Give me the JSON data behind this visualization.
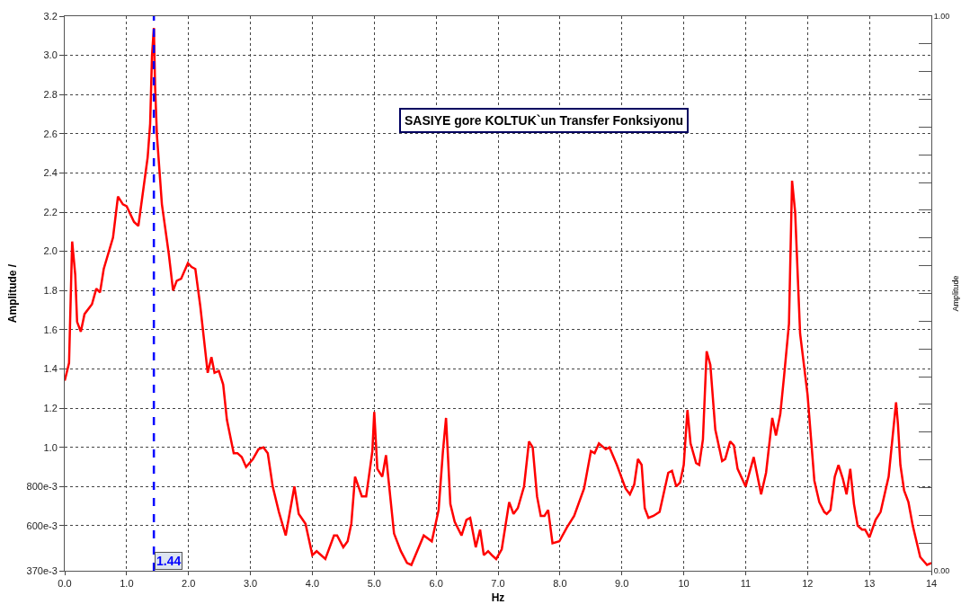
{
  "chart_data": {
    "type": "line",
    "title": "SASIYE gore KOLTUK`un Transfer Fonksiyonu",
    "xlabel": "Hz",
    "ylabel": "Amplitude /",
    "y2label": "Amplitude",
    "x": [
      0,
      0.07,
      0.12,
      0.17,
      0.2,
      0.26,
      0.32,
      0.44,
      0.51,
      0.57,
      0.63,
      0.78,
      0.86,
      0.94,
      1.0,
      1.12,
      1.19,
      1.34,
      1.38,
      1.41,
      1.44,
      1.46,
      1.49,
      1.57,
      1.68,
      1.75,
      1.81,
      1.88,
      1.99,
      2.05,
      2.11,
      2.19,
      2.31,
      2.37,
      2.42,
      2.49,
      2.56,
      2.62,
      2.73,
      2.79,
      2.86,
      2.93,
      3.04,
      3.13,
      3.21,
      3.28,
      3.36,
      3.46,
      3.57,
      3.71,
      3.78,
      3.89,
      4.0,
      4.07,
      4.21,
      4.35,
      4.4,
      4.5,
      4.57,
      4.63,
      4.69,
      4.8,
      4.87,
      4.97,
      5.0,
      5.05,
      5.13,
      5.19,
      5.32,
      5.43,
      5.53,
      5.6,
      5.8,
      5.93,
      6.04,
      6.11,
      6.16,
      6.23,
      6.3,
      6.41,
      6.49,
      6.55,
      6.64,
      6.71,
      6.77,
      6.84,
      6.9,
      6.97,
      7.06,
      7.18,
      7.25,
      7.32,
      7.42,
      7.5,
      7.56,
      7.63,
      7.69,
      7.75,
      7.81,
      7.88,
      7.99,
      8.11,
      8.23,
      8.39,
      8.5,
      8.56,
      8.63,
      8.74,
      8.8,
      8.92,
      9.06,
      9.13,
      9.2,
      9.26,
      9.32,
      9.37,
      9.43,
      9.51,
      9.61,
      9.75,
      9.81,
      9.88,
      9.94,
      10.0,
      10.06,
      10.11,
      10.2,
      10.25,
      10.31,
      10.37,
      10.43,
      10.51,
      10.62,
      10.67,
      10.75,
      10.81,
      10.87,
      11.0,
      11.13,
      11.25,
      11.33,
      11.43,
      11.49,
      11.56,
      11.62,
      11.7,
      11.75,
      11.8,
      11.88,
      12.0,
      12.11,
      12.19,
      12.27,
      12.31,
      12.37,
      12.44,
      12.5,
      12.57,
      12.63,
      12.69,
      12.75,
      12.81,
      12.88,
      12.93,
      13.0,
      13.1,
      13.18,
      13.31,
      13.43,
      13.46,
      13.5,
      13.56,
      13.63,
      13.7,
      13.82,
      13.93,
      14.0
    ],
    "series": [
      {
        "color": "#ff0000",
        "values": [
          1.34,
          1.43,
          2.05,
          1.88,
          1.64,
          1.59,
          1.68,
          1.73,
          1.81,
          1.79,
          1.91,
          2.07,
          2.28,
          2.24,
          2.23,
          2.15,
          2.13,
          2.48,
          2.65,
          3.0,
          3.14,
          2.84,
          2.59,
          2.24,
          1.99,
          1.8,
          1.85,
          1.86,
          1.94,
          1.92,
          1.91,
          1.72,
          1.38,
          1.46,
          1.38,
          1.39,
          1.32,
          1.14,
          0.97,
          0.97,
          0.95,
          0.9,
          0.94,
          0.99,
          1.0,
          0.97,
          0.8,
          0.67,
          0.55,
          0.8,
          0.66,
          0.61,
          0.45,
          0.47,
          0.43,
          0.55,
          0.55,
          0.49,
          0.52,
          0.61,
          0.85,
          0.75,
          0.75,
          0.98,
          1.18,
          0.89,
          0.85,
          0.96,
          0.56,
          0.47,
          0.41,
          0.4,
          0.55,
          0.52,
          0.68,
          0.98,
          1.15,
          0.71,
          0.62,
          0.55,
          0.63,
          0.64,
          0.49,
          0.58,
          0.45,
          0.47,
          0.45,
          0.43,
          0.48,
          0.72,
          0.66,
          0.69,
          0.8,
          1.03,
          1.0,
          0.75,
          0.65,
          0.65,
          0.68,
          0.51,
          0.52,
          0.59,
          0.65,
          0.79,
          0.98,
          0.97,
          1.02,
          0.99,
          1.0,
          0.91,
          0.79,
          0.76,
          0.81,
          0.94,
          0.91,
          0.69,
          0.64,
          0.65,
          0.67,
          0.87,
          0.88,
          0.8,
          0.82,
          0.91,
          1.19,
          1.02,
          0.92,
          0.91,
          1.04,
          1.49,
          1.42,
          1.09,
          0.93,
          0.94,
          1.03,
          1.01,
          0.89,
          0.8,
          0.95,
          0.76,
          0.87,
          1.15,
          1.06,
          1.17,
          1.36,
          1.63,
          2.36,
          2.2,
          1.58,
          1.27,
          0.83,
          0.72,
          0.67,
          0.66,
          0.68,
          0.85,
          0.91,
          0.84,
          0.76,
          0.89,
          0.71,
          0.6,
          0.58,
          0.58,
          0.54,
          0.63,
          0.67,
          0.85,
          1.23,
          1.12,
          0.91,
          0.78,
          0.72,
          0.6,
          0.44,
          0.4,
          0.41
        ]
      }
    ],
    "xlim": [
      0,
      14
    ],
    "xticks": [
      {
        "value": 0,
        "label": "0.0"
      },
      {
        "value": 1,
        "label": "1.0"
      },
      {
        "value": 2,
        "label": "2.0"
      },
      {
        "value": 3,
        "label": "3.0"
      },
      {
        "value": 4,
        "label": "4.0"
      },
      {
        "value": 5,
        "label": "5.0"
      },
      {
        "value": 6,
        "label": "6.0"
      },
      {
        "value": 7,
        "label": "7.0"
      },
      {
        "value": 8,
        "label": "8.0"
      },
      {
        "value": 9,
        "label": "9.0"
      },
      10,
      11,
      12,
      13,
      14
    ],
    "ylim": [
      0.37,
      3.2
    ],
    "yticks": [
      {
        "value": 0.37,
        "label": "370e-3"
      },
      {
        "value": 0.6,
        "label": "600e-3"
      },
      {
        "value": 0.8,
        "label": "800e-3"
      },
      {
        "value": 1.0,
        "label": "1.0"
      },
      {
        "value": 1.2,
        "label": "1.2"
      },
      {
        "value": 1.4,
        "label": "1.4"
      },
      {
        "value": 1.6,
        "label": "1.6"
      },
      {
        "value": 1.8,
        "label": "1.8"
      },
      {
        "value": 2.0,
        "label": "2.0"
      },
      {
        "value": 2.2,
        "label": "2.2"
      },
      {
        "value": 2.4,
        "label": "2.4"
      },
      {
        "value": 2.6,
        "label": "2.6"
      },
      {
        "value": 2.8,
        "label": "2.8"
      },
      {
        "value": 3.0,
        "label": "3.0"
      },
      {
        "value": 3.2,
        "label": "3.2"
      }
    ],
    "y2lim": [
      0,
      1
    ],
    "y2ticks": [
      {
        "value": 0,
        "label": "0.00"
      },
      {
        "value": 0.05,
        "label": null
      },
      {
        "value": 0.1,
        "label": null
      },
      {
        "value": 0.15,
        "label": null
      },
      {
        "value": 0.2,
        "label": null
      },
      {
        "value": 0.25,
        "label": null
      },
      {
        "value": 0.3,
        "label": null
      },
      {
        "value": 0.35,
        "label": null
      },
      {
        "value": 0.4,
        "label": null
      },
      {
        "value": 0.45,
        "label": null
      },
      {
        "value": 0.5,
        "label": null
      },
      {
        "value": 0.55,
        "label": null
      },
      {
        "value": 0.6,
        "label": null
      },
      {
        "value": 0.65,
        "label": null
      },
      {
        "value": 0.7,
        "label": null
      },
      {
        "value": 0.75,
        "label": null
      },
      {
        "value": 0.8,
        "label": null
      },
      {
        "value": 0.85,
        "label": null
      },
      {
        "value": 0.9,
        "label": null
      },
      {
        "value": 0.95,
        "label": null
      },
      {
        "value": 1,
        "label": "1.00"
      }
    ],
    "ref_lines": [
      {
        "axis": "x",
        "value": 1.44,
        "label": "1.44",
        "color": "#0000ff",
        "line_style": "dashed"
      }
    ],
    "grid": true,
    "marker": "none",
    "line_style": "solid"
  }
}
